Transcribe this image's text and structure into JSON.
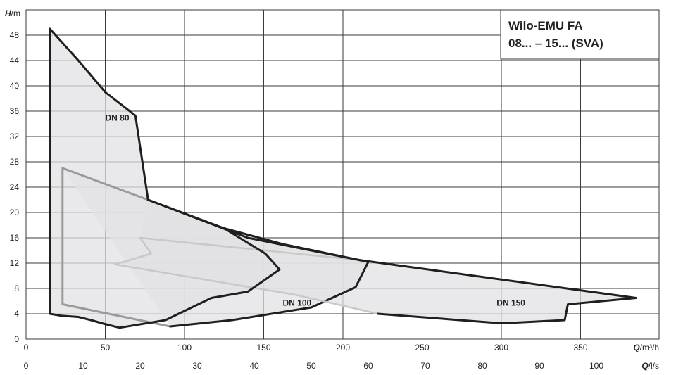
{
  "chart_data": {
    "type": "area",
    "title_lines": [
      "Wilo-EMU FA",
      "08... – 15... (SVA)"
    ],
    "ylabel": {
      "symbol": "H",
      "unit": "/m"
    },
    "xlabel": {
      "symbol": "Q",
      "unit": "/m³/h"
    },
    "x2label": {
      "symbol": "Q",
      "unit": "/l/s"
    },
    "xlim": [
      0,
      400
    ],
    "ylim": [
      0,
      52
    ],
    "x_ticks": [
      0,
      50,
      100,
      150,
      200,
      250,
      300,
      350
    ],
    "y_ticks": [
      0,
      4,
      8,
      12,
      16,
      20,
      24,
      28,
      32,
      36,
      40,
      44,
      48
    ],
    "x2_ticks": [
      0,
      10,
      20,
      30,
      40,
      50,
      60,
      70,
      80,
      90,
      100
    ],
    "x2_to_x_factor": 3.6,
    "grid": true,
    "series": [
      {
        "name": "DN 80",
        "label_at": [
          50,
          34.5
        ],
        "points": [
          [
            15,
            49
          ],
          [
            33,
            44
          ],
          [
            50,
            39
          ],
          [
            69,
            35.3
          ],
          [
            77,
            22
          ],
          [
            125,
            17.5
          ],
          [
            151,
            13.5
          ],
          [
            160,
            11
          ],
          [
            140,
            7.5
          ],
          [
            117,
            6.5
          ],
          [
            88,
            3
          ],
          [
            59,
            1.8
          ],
          [
            48,
            2.5
          ],
          [
            41,
            3
          ],
          [
            33,
            3.5
          ],
          [
            22,
            3.7
          ],
          [
            15,
            4
          ]
        ]
      },
      {
        "name": "DN 100",
        "label_at": [
          162,
          5.3
        ],
        "points": [
          [
            23,
            27
          ],
          [
            77,
            22
          ],
          [
            125,
            17.5
          ],
          [
            162,
            15
          ],
          [
            216,
            12.2
          ],
          [
            208,
            8.2
          ],
          [
            180,
            5
          ],
          [
            130,
            3
          ],
          [
            91,
            2
          ]
        ]
      },
      {
        "name": "DN 150",
        "label_at": [
          297,
          5.3
        ],
        "points": [
          [
            77,
            22
          ],
          [
            140,
            16
          ],
          [
            210,
            12.5
          ],
          [
            385,
            6.5
          ],
          [
            342,
            5.5
          ],
          [
            340,
            3
          ],
          [
            300,
            2.5
          ],
          [
            222,
            4
          ],
          [
            170,
            7
          ],
          [
            56,
            11.8
          ],
          [
            79,
            13.5
          ],
          [
            72,
            16
          ]
        ]
      }
    ]
  },
  "colors": {
    "grid": "#3a3a3a",
    "fill": "#e1e2e4",
    "outline_dark": "#1f1f1f",
    "outline_mid": "#9a9a9a",
    "outline_light": "#c8c8c8"
  }
}
